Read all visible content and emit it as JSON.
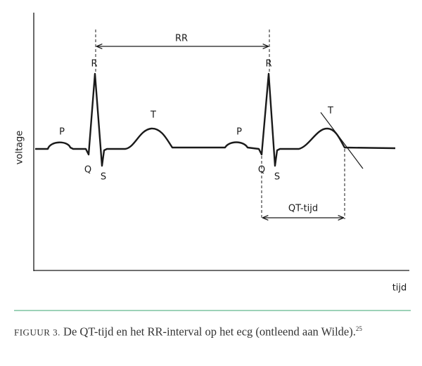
{
  "axes": {
    "y_label": "voltage",
    "x_label": "tijd"
  },
  "waves": [
    {
      "label": "P"
    },
    {
      "label": "Q"
    },
    {
      "label": "R"
    },
    {
      "label": "S"
    },
    {
      "label": "T"
    },
    {
      "label": "P"
    },
    {
      "label": "Q"
    },
    {
      "label": "R"
    },
    {
      "label": "S"
    },
    {
      "label": "T"
    }
  ],
  "intervals": [
    {
      "label": "RR"
    },
    {
      "label": "QT-tijd"
    }
  ],
  "caption": {
    "figure": "FIGUUR 3.",
    "text": "De QT-tijd en het RR-interval op het ecg (ontleend aan Wilde).",
    "note": "25"
  }
}
